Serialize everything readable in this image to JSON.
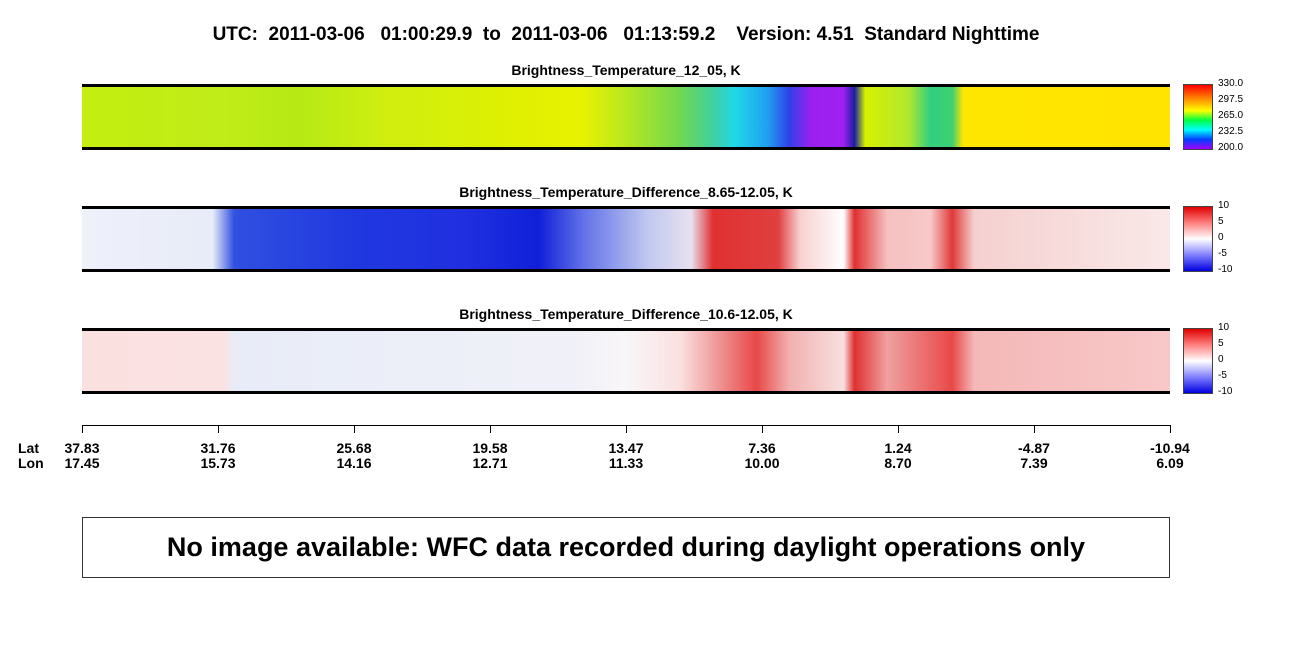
{
  "title": "UTC:  2011-03-06   01:00:29.9  to  2011-03-06   01:13:59.2    Version: 4.51  Standard Nighttime",
  "panels": [
    {
      "title": "Brightness_Temperature_12_05, K",
      "colorbar_labels": [
        "330.0",
        "297.5",
        "265.0",
        "232.5",
        "200.0"
      ]
    },
    {
      "title": "Brightness_Temperature_Difference_8.65-12.05, K",
      "colorbar_labels": [
        "10",
        "5",
        "0",
        "-5",
        "-10"
      ]
    },
    {
      "title": "Brightness_Temperature_Difference_10.6-12.05, K",
      "colorbar_labels": [
        "10",
        "5",
        "0",
        "-5",
        "-10"
      ]
    }
  ],
  "axis": {
    "row_labels": [
      "Lat",
      "Lon"
    ],
    "ticks": [
      {
        "lat": "37.83",
        "lon": "17.45"
      },
      {
        "lat": "31.76",
        "lon": "15.73"
      },
      {
        "lat": "25.68",
        "lon": "14.16"
      },
      {
        "lat": "19.58",
        "lon": "12.71"
      },
      {
        "lat": "13.47",
        "lon": "11.33"
      },
      {
        "lat": "7.36",
        "lon": "10.00"
      },
      {
        "lat": "1.24",
        "lon": "8.70"
      },
      {
        "lat": "-4.87",
        "lon": "7.39"
      },
      {
        "lat": "-10.94",
        "lon": "6.09"
      }
    ]
  },
  "message": "No image available: WFC data recorded during daylight operations only"
}
